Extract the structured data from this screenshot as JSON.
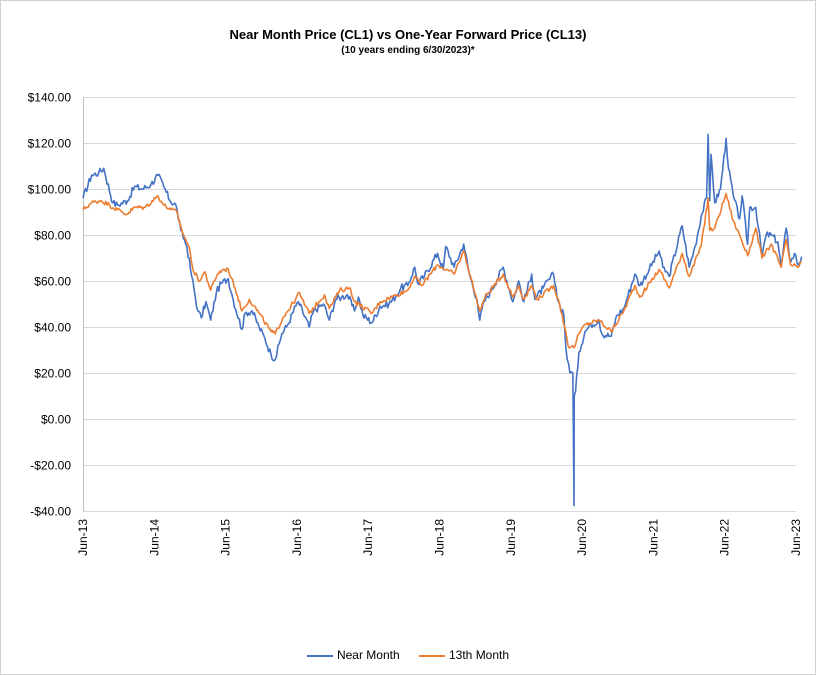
{
  "chart_data": {
    "type": "line",
    "title": "Near Month Price (CL1) vs One-Year Forward Price (CL13)",
    "subtitle": "(10 years ending  6/30/2023)*",
    "ylim": [
      -40,
      140
    ],
    "yticks": [
      -40,
      -20,
      0,
      20,
      40,
      60,
      80,
      100,
      120,
      140
    ],
    "ytick_labels": [
      "-$40.00",
      "-$20.00",
      "$0.00",
      "$20.00",
      "$40.00",
      "$60.00",
      "$80.00",
      "$100.00",
      "$120.00",
      "$140.00"
    ],
    "xlim": [
      "2013-06",
      "2023-06"
    ],
    "xticks": [
      "2013-06",
      "2014-06",
      "2015-06",
      "2016-06",
      "2017-06",
      "2018-06",
      "2019-06",
      "2020-06",
      "2021-06",
      "2022-06",
      "2023-06"
    ],
    "xtick_labels": [
      "Jun-13",
      "Jun-14",
      "Jun-15",
      "Jun-16",
      "Jun-17",
      "Jun-18",
      "Jun-19",
      "Jun-20",
      "Jun-21",
      "Jun-22",
      "Jun-23"
    ],
    "grid": "horizontal",
    "legend": "bottom",
    "series": [
      {
        "name": "Near Month",
        "color": "#4472c4",
        "points": [
          [
            "2013-06-01",
            96
          ],
          [
            "2013-07-15",
            106
          ],
          [
            "2013-08-20",
            107
          ],
          [
            "2013-09-15",
            109
          ],
          [
            "2013-11-01",
            94
          ],
          [
            "2013-11-25",
            93
          ],
          [
            "2014-01-15",
            95
          ],
          [
            "2014-02-20",
            101
          ],
          [
            "2014-04-01",
            100
          ],
          [
            "2014-05-15",
            102
          ],
          [
            "2014-06-20",
            106
          ],
          [
            "2014-07-20",
            101
          ],
          [
            "2014-08-20",
            95
          ],
          [
            "2014-09-20",
            93
          ],
          [
            "2014-10-15",
            82
          ],
          [
            "2014-11-15",
            75
          ],
          [
            "2014-12-10",
            62
          ],
          [
            "2015-01-10",
            47
          ],
          [
            "2015-01-28",
            44
          ],
          [
            "2015-02-20",
            51
          ],
          [
            "2015-03-17",
            43
          ],
          [
            "2015-04-15",
            55
          ],
          [
            "2015-05-10",
            59
          ],
          [
            "2015-06-15",
            61
          ],
          [
            "2015-07-10",
            52
          ],
          [
            "2015-08-24",
            39
          ],
          [
            "2015-09-10",
            46
          ],
          [
            "2015-10-15",
            47
          ],
          [
            "2015-11-20",
            40
          ],
          [
            "2015-12-20",
            35
          ],
          [
            "2016-01-20",
            28
          ],
          [
            "2016-02-11",
            26
          ],
          [
            "2016-03-15",
            37
          ],
          [
            "2016-04-15",
            41
          ],
          [
            "2016-05-25",
            49
          ],
          [
            "2016-06-08",
            51
          ],
          [
            "2016-08-02",
            40
          ],
          [
            "2016-08-25",
            47
          ],
          [
            "2016-10-15",
            50
          ],
          [
            "2016-11-14",
            43
          ],
          [
            "2016-12-15",
            52
          ],
          [
            "2017-01-15",
            53
          ],
          [
            "2017-02-15",
            54
          ],
          [
            "2017-03-22",
            47
          ],
          [
            "2017-04-12",
            53
          ],
          [
            "2017-05-05",
            45
          ],
          [
            "2017-06-21",
            42
          ],
          [
            "2017-08-01",
            49
          ],
          [
            "2017-09-15",
            50
          ],
          [
            "2017-10-25",
            54
          ],
          [
            "2017-11-15",
            57
          ],
          [
            "2017-12-20",
            58
          ],
          [
            "2018-01-25",
            66
          ],
          [
            "2018-02-09",
            59
          ],
          [
            "2018-03-15",
            62
          ],
          [
            "2018-05-22",
            72
          ],
          [
            "2018-06-20",
            65
          ],
          [
            "2018-07-03",
            75
          ],
          [
            "2018-08-15",
            66
          ],
          [
            "2018-10-03",
            76
          ],
          [
            "2018-11-01",
            63
          ],
          [
            "2018-12-10",
            52
          ],
          [
            "2018-12-24",
            43
          ],
          [
            "2019-01-15",
            51
          ],
          [
            "2019-02-15",
            55
          ],
          [
            "2019-04-23",
            66
          ],
          [
            "2019-06-12",
            51
          ],
          [
            "2019-07-11",
            60
          ],
          [
            "2019-08-07",
            51
          ],
          [
            "2019-09-16",
            63
          ],
          [
            "2019-10-03",
            52
          ],
          [
            "2019-11-15",
            57
          ],
          [
            "2020-01-06",
            63
          ],
          [
            "2020-01-31",
            51
          ],
          [
            "2020-02-28",
            45
          ],
          [
            "2020-03-09",
            31
          ],
          [
            "2020-03-30",
            20
          ],
          [
            "2020-04-14",
            20
          ],
          [
            "2020-04-20",
            -37.6
          ],
          [
            "2020-04-21",
            10
          ],
          [
            "2020-04-28",
            12
          ],
          [
            "2020-05-15",
            29
          ],
          [
            "2020-06-15",
            38
          ],
          [
            "2020-07-15",
            41
          ],
          [
            "2020-08-26",
            43
          ],
          [
            "2020-09-10",
            37
          ],
          [
            "2020-10-28",
            36
          ],
          [
            "2020-11-25",
            45
          ],
          [
            "2020-12-31",
            48
          ],
          [
            "2021-01-15",
            52
          ],
          [
            "2021-02-25",
            63
          ],
          [
            "2021-03-23",
            58
          ],
          [
            "2021-05-10",
            65
          ],
          [
            "2021-06-30",
            73
          ],
          [
            "2021-07-19",
            66
          ],
          [
            "2021-08-20",
            62
          ],
          [
            "2021-10-26",
            84
          ],
          [
            "2021-12-01",
            66
          ],
          [
            "2021-12-31",
            75
          ],
          [
            "2022-01-31",
            88
          ],
          [
            "2022-02-28",
            96
          ],
          [
            "2022-03-08",
            123.7
          ],
          [
            "2022-03-16",
            95
          ],
          [
            "2022-03-23",
            115
          ],
          [
            "2022-04-11",
            94
          ],
          [
            "2022-05-10",
            100
          ],
          [
            "2022-06-08",
            122
          ],
          [
            "2022-06-20",
            109
          ],
          [
            "2022-07-15",
            97
          ],
          [
            "2022-08-16",
            87
          ],
          [
            "2022-08-29",
            97
          ],
          [
            "2022-09-26",
            76
          ],
          [
            "2022-10-07",
            92
          ],
          [
            "2022-11-07",
            92
          ],
          [
            "2022-12-09",
            71
          ],
          [
            "2022-12-30",
            80
          ],
          [
            "2023-01-25",
            80
          ],
          [
            "2023-02-28",
            77
          ],
          [
            "2023-03-17",
            66
          ],
          [
            "2023-04-12",
            83
          ],
          [
            "2023-05-04",
            68
          ],
          [
            "2023-05-25",
            72
          ],
          [
            "2023-06-12",
            67
          ],
          [
            "2023-06-30",
            70.6
          ]
        ]
      },
      {
        "name": "13th Month",
        "color": "#ed7d31",
        "points": [
          [
            "2013-06-01",
            91
          ],
          [
            "2013-07-15",
            94
          ],
          [
            "2013-09-01",
            95
          ],
          [
            "2013-10-15",
            93
          ],
          [
            "2013-11-25",
            91
          ],
          [
            "2014-01-10",
            89
          ],
          [
            "2014-02-20",
            92
          ],
          [
            "2014-04-15",
            92
          ],
          [
            "2014-06-20",
            97
          ],
          [
            "2014-07-20",
            93
          ],
          [
            "2014-08-25",
            91
          ],
          [
            "2014-09-25",
            90
          ],
          [
            "2014-10-20",
            82
          ],
          [
            "2014-11-25",
            75
          ],
          [
            "2014-12-20",
            64
          ],
          [
            "2015-01-20",
            60
          ],
          [
            "2015-02-15",
            64
          ],
          [
            "2015-03-17",
            56
          ],
          [
            "2015-04-20",
            63
          ],
          [
            "2015-05-20",
            65
          ],
          [
            "2015-06-15",
            65
          ],
          [
            "2015-07-20",
            57
          ],
          [
            "2015-08-24",
            47
          ],
          [
            "2015-10-01",
            52
          ],
          [
            "2015-11-20",
            46
          ],
          [
            "2016-01-20",
            38
          ],
          [
            "2016-02-11",
            37
          ],
          [
            "2016-03-20",
            44
          ],
          [
            "2016-05-25",
            52
          ],
          [
            "2016-06-09",
            55
          ],
          [
            "2016-08-02",
            46
          ],
          [
            "2016-10-20",
            54
          ],
          [
            "2016-11-14",
            48
          ],
          [
            "2017-01-05",
            56
          ],
          [
            "2017-03-01",
            57
          ],
          [
            "2017-03-22",
            51
          ],
          [
            "2017-06-21",
            46
          ],
          [
            "2017-08-01",
            51
          ],
          [
            "2017-10-25",
            54
          ],
          [
            "2017-12-20",
            56
          ],
          [
            "2018-01-25",
            62
          ],
          [
            "2018-03-01",
            58
          ],
          [
            "2018-05-22",
            67
          ],
          [
            "2018-08-15",
            63
          ],
          [
            "2018-10-03",
            73
          ],
          [
            "2018-11-10",
            61
          ],
          [
            "2018-12-24",
            47
          ],
          [
            "2019-01-20",
            53
          ],
          [
            "2019-04-23",
            63
          ],
          [
            "2019-06-12",
            53
          ],
          [
            "2019-07-11",
            58
          ],
          [
            "2019-08-07",
            52
          ],
          [
            "2019-09-16",
            58
          ],
          [
            "2019-10-15",
            52
          ],
          [
            "2020-01-06",
            58
          ],
          [
            "2020-01-31",
            52
          ],
          [
            "2020-03-09",
            38
          ],
          [
            "2020-03-20",
            32
          ],
          [
            "2020-04-20",
            31
          ],
          [
            "2020-05-15",
            37
          ],
          [
            "2020-06-15",
            41
          ],
          [
            "2020-08-26",
            43
          ],
          [
            "2020-10-28",
            38
          ],
          [
            "2020-12-31",
            47
          ],
          [
            "2021-02-25",
            58
          ],
          [
            "2021-03-23",
            53
          ],
          [
            "2021-06-30",
            65
          ],
          [
            "2021-08-20",
            57
          ],
          [
            "2021-10-26",
            72
          ],
          [
            "2021-12-01",
            62
          ],
          [
            "2022-01-31",
            75
          ],
          [
            "2022-03-08",
            96
          ],
          [
            "2022-03-16",
            82
          ],
          [
            "2022-04-11",
            83
          ],
          [
            "2022-06-08",
            98
          ],
          [
            "2022-07-15",
            86
          ],
          [
            "2022-08-16",
            80
          ],
          [
            "2022-09-26",
            71
          ],
          [
            "2022-11-07",
            83
          ],
          [
            "2022-12-09",
            70
          ],
          [
            "2023-01-25",
            76
          ],
          [
            "2023-03-17",
            66
          ],
          [
            "2023-04-12",
            78
          ],
          [
            "2023-05-04",
            67
          ],
          [
            "2023-06-12",
            66
          ],
          [
            "2023-06-30",
            68
          ]
        ]
      }
    ]
  }
}
